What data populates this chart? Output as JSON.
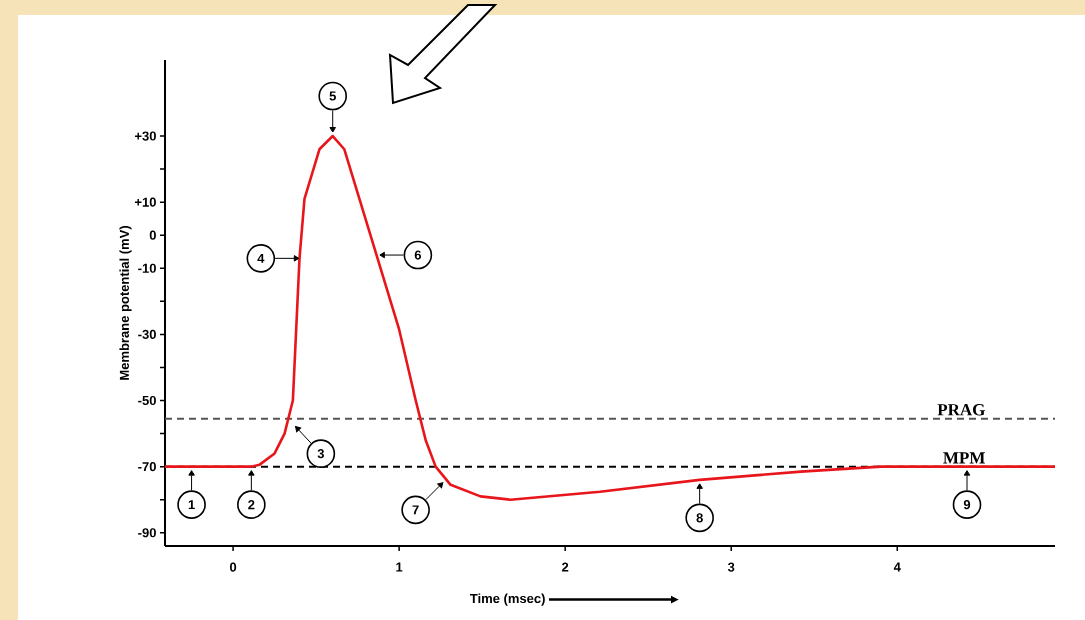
{
  "chart_data": {
    "type": "line",
    "xlabel": "Time (msec)",
    "ylabel": "Membrane potential (mV)",
    "xlim": [
      -0.41,
      4.95
    ],
    "ylim": [
      -94,
      53
    ],
    "xticks": [
      0,
      1,
      2,
      3,
      4
    ],
    "yticks": [
      {
        "value": 30,
        "label": "+30"
      },
      {
        "value": 20,
        "label": null
      },
      {
        "value": 10,
        "label": "+10"
      },
      0,
      -10,
      {
        "value": -20,
        "label": null
      },
      -30,
      {
        "value": -40,
        "label": null
      },
      -50,
      {
        "value": -60,
        "label": null
      },
      -70,
      {
        "value": -80,
        "label": null
      },
      -90
    ],
    "series": [
      {
        "color": "#e8161b",
        "x": [
          -0.41,
          0.11,
          0.16,
          0.25,
          0.31,
          0.36,
          0.38,
          0.4,
          0.43,
          0.52,
          0.6,
          0.67,
          0.87,
          1.0,
          1.1,
          1.16,
          1.22,
          1.31,
          1.49,
          1.67,
          2.21,
          2.81,
          3.42,
          3.9,
          4.95
        ],
        "values": [
          -70,
          -70,
          -69.4,
          -66,
          -60,
          -50,
          -28.5,
          -7,
          11,
          26,
          30,
          26,
          -7,
          -28.5,
          -50,
          -62,
          -70,
          -75.5,
          -79,
          -80,
          -77.6,
          -74,
          -71.5,
          -70,
          -70
        ]
      }
    ],
    "marker": "none",
    "line_style": "solid",
    "grid": false,
    "ref_lines": [
      {
        "axis": "y",
        "value": -55.5,
        "label": "PRAG",
        "color": "#555555",
        "line_style": "dashed"
      },
      {
        "axis": "y",
        "value": -70,
        "label": "MPM",
        "color": "#000000",
        "line_style": "dashed"
      }
    ],
    "annotations": [
      {
        "text": "1",
        "x": -0.25,
        "y": -70
      },
      {
        "text": "2",
        "x": 0.11,
        "y": -70
      },
      {
        "text": "3",
        "x": 0.36,
        "y": -57
      },
      {
        "text": "4",
        "x": 0.42,
        "y": -7
      },
      {
        "text": "5",
        "x": 0.6,
        "y": 30
      },
      {
        "text": "6",
        "x": 0.86,
        "y": -6
      },
      {
        "text": "7",
        "x": 1.28,
        "y": -74
      },
      {
        "text": "8",
        "x": 2.81,
        "y": -74
      },
      {
        "text": "9",
        "x": 4.42,
        "y": -70
      }
    ]
  }
}
